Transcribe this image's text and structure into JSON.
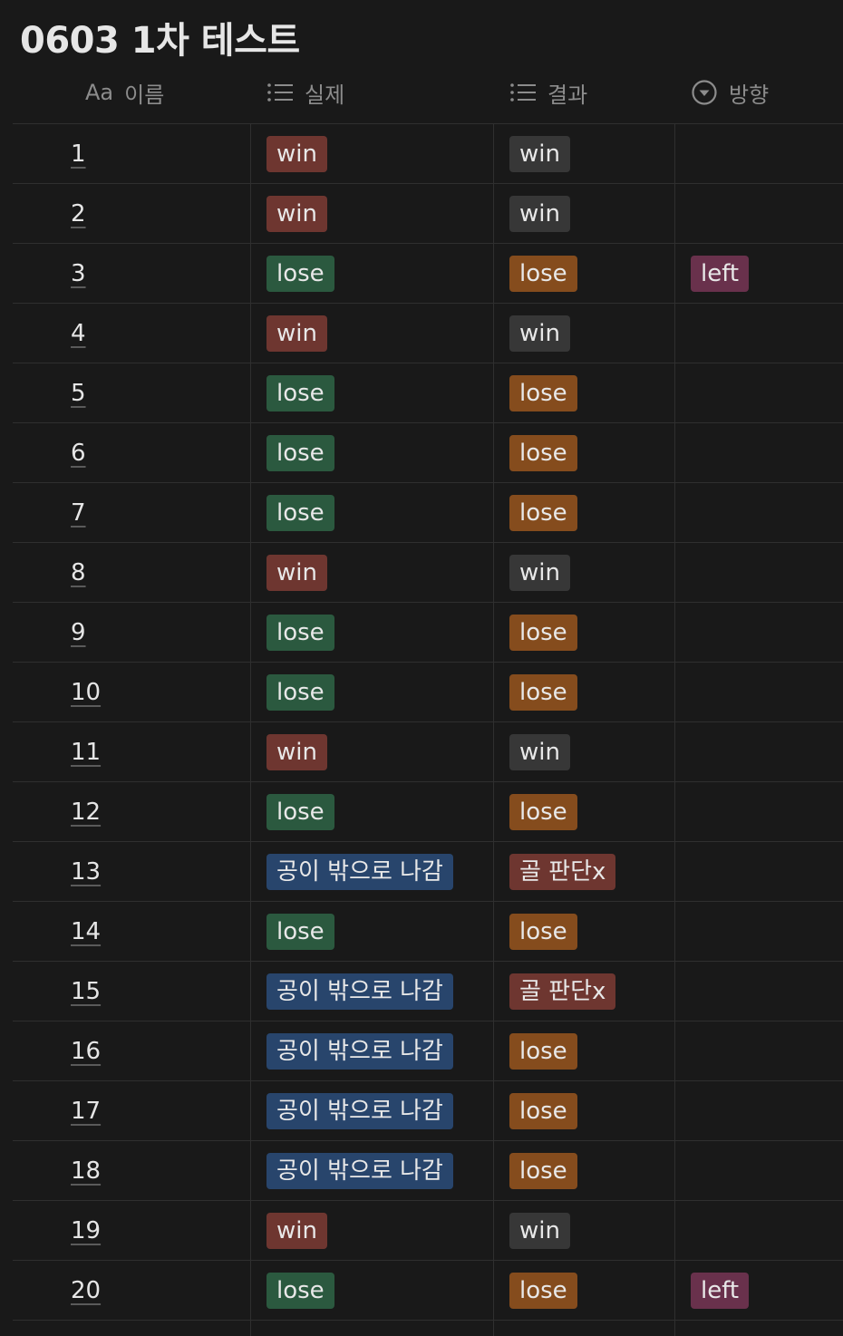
{
  "page": {
    "title": "0603 1차 테스트"
  },
  "columns": {
    "name": {
      "icon": "text-type-icon",
      "icon_text": "Aa",
      "label": "이름"
    },
    "actual": {
      "icon": "list-icon",
      "label": "실제"
    },
    "result": {
      "icon": "list-icon",
      "label": "결과"
    },
    "direction": {
      "icon": "select-dropdown-icon",
      "label": "방향"
    }
  },
  "tag_colors": {
    "win_actual": "#6e3630",
    "lose_actual": "#2b593f",
    "ball_out": "#28456c",
    "win_result": "#373737",
    "lose_result": "#854c1d",
    "goal_judge": "#6e3630",
    "left": "#69314c"
  },
  "rows": [
    {
      "name": "1",
      "actual": "win",
      "result": "win",
      "direction": ""
    },
    {
      "name": "2",
      "actual": "win",
      "result": "win",
      "direction": ""
    },
    {
      "name": "3",
      "actual": "lose",
      "result": "lose",
      "direction": "left"
    },
    {
      "name": "4",
      "actual": "win",
      "result": "win",
      "direction": ""
    },
    {
      "name": "5",
      "actual": "lose",
      "result": "lose",
      "direction": ""
    },
    {
      "name": "6",
      "actual": "lose",
      "result": "lose",
      "direction": ""
    },
    {
      "name": "7",
      "actual": "lose",
      "result": "lose",
      "direction": ""
    },
    {
      "name": "8",
      "actual": "win",
      "result": "win",
      "direction": ""
    },
    {
      "name": "9",
      "actual": "lose",
      "result": "lose",
      "direction": ""
    },
    {
      "name": "10",
      "actual": "lose",
      "result": "lose",
      "direction": ""
    },
    {
      "name": "11",
      "actual": "win",
      "result": "win",
      "direction": ""
    },
    {
      "name": "12",
      "actual": "lose",
      "result": "lose",
      "direction": ""
    },
    {
      "name": "13",
      "actual": "공이 밖으로 나감",
      "result": "골 판단x",
      "direction": ""
    },
    {
      "name": "14",
      "actual": "lose",
      "result": "lose",
      "direction": ""
    },
    {
      "name": "15",
      "actual": "공이 밖으로 나감",
      "result": "골 판단x",
      "direction": ""
    },
    {
      "name": "16",
      "actual": "공이 밖으로 나감",
      "result": "lose",
      "direction": ""
    },
    {
      "name": "17",
      "actual": "공이 밖으로 나감",
      "result": "lose",
      "direction": ""
    },
    {
      "name": "18",
      "actual": "공이 밖으로 나감",
      "result": "lose",
      "direction": ""
    },
    {
      "name": "19",
      "actual": "win",
      "result": "win",
      "direction": ""
    },
    {
      "name": "20",
      "actual": "lose",
      "result": "lose",
      "direction": "left"
    }
  ]
}
